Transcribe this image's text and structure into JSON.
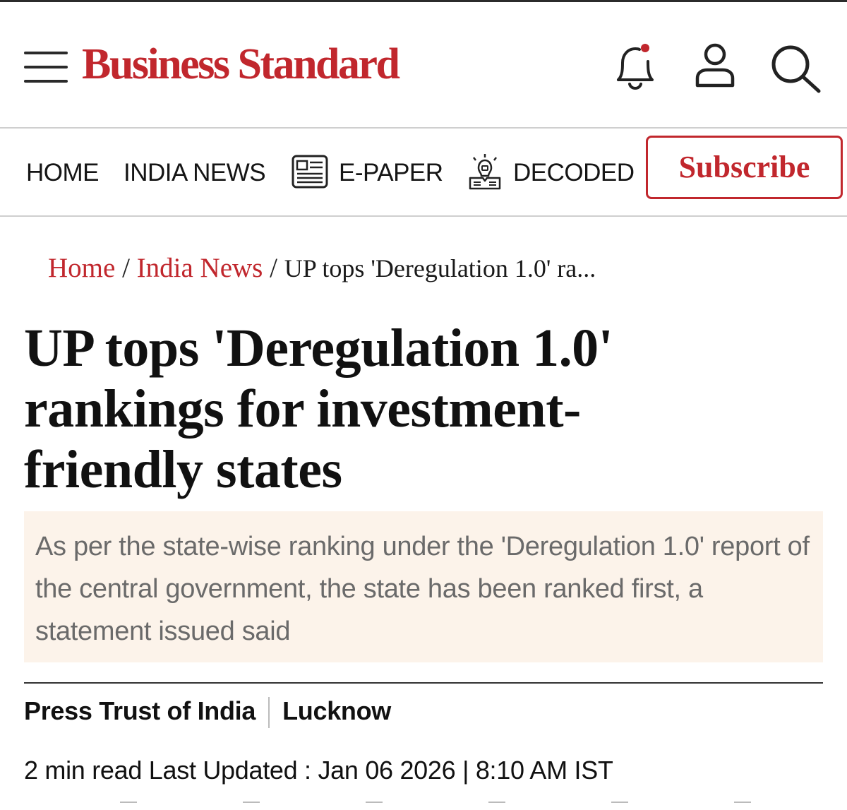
{
  "header": {
    "logo_text": "Business Standard",
    "icons": [
      "hamburger-menu-icon",
      "bell-icon",
      "user-icon",
      "search-icon"
    ],
    "notification_dot_color": "#c1272d"
  },
  "nav": {
    "items": [
      {
        "label": "HOME"
      },
      {
        "label": "INDIA NEWS"
      },
      {
        "label": "E-PAPER",
        "icon": "newspaper-icon"
      },
      {
        "label": "DECODED",
        "icon": "lightbulb-icon"
      }
    ],
    "subscribe_label": "Subscribe"
  },
  "breadcrumb": {
    "home": "Home",
    "sep1": "/",
    "section": "India News",
    "sep2": "/",
    "current": "UP tops 'Deregulation 1.0' ra..."
  },
  "article": {
    "headline": "UP tops 'Deregulation 1.0' rankings for investment-friendly states",
    "summary": "As per the state-wise ranking under the 'Deregulation 1.0' report of the central government, the state has been ranked first, a statement issued said",
    "author": "Press Trust of India",
    "location": "Lucknow",
    "read_time": "2 min read",
    "updated_label": "Last Updated :",
    "date": "Jan 06 2026",
    "meta_sep": "|",
    "time": "8:10 AM IST"
  },
  "colors": {
    "brand": "#c1272d",
    "summary_bg": "#fcf3ea",
    "summary_text": "#6a6a6a"
  }
}
